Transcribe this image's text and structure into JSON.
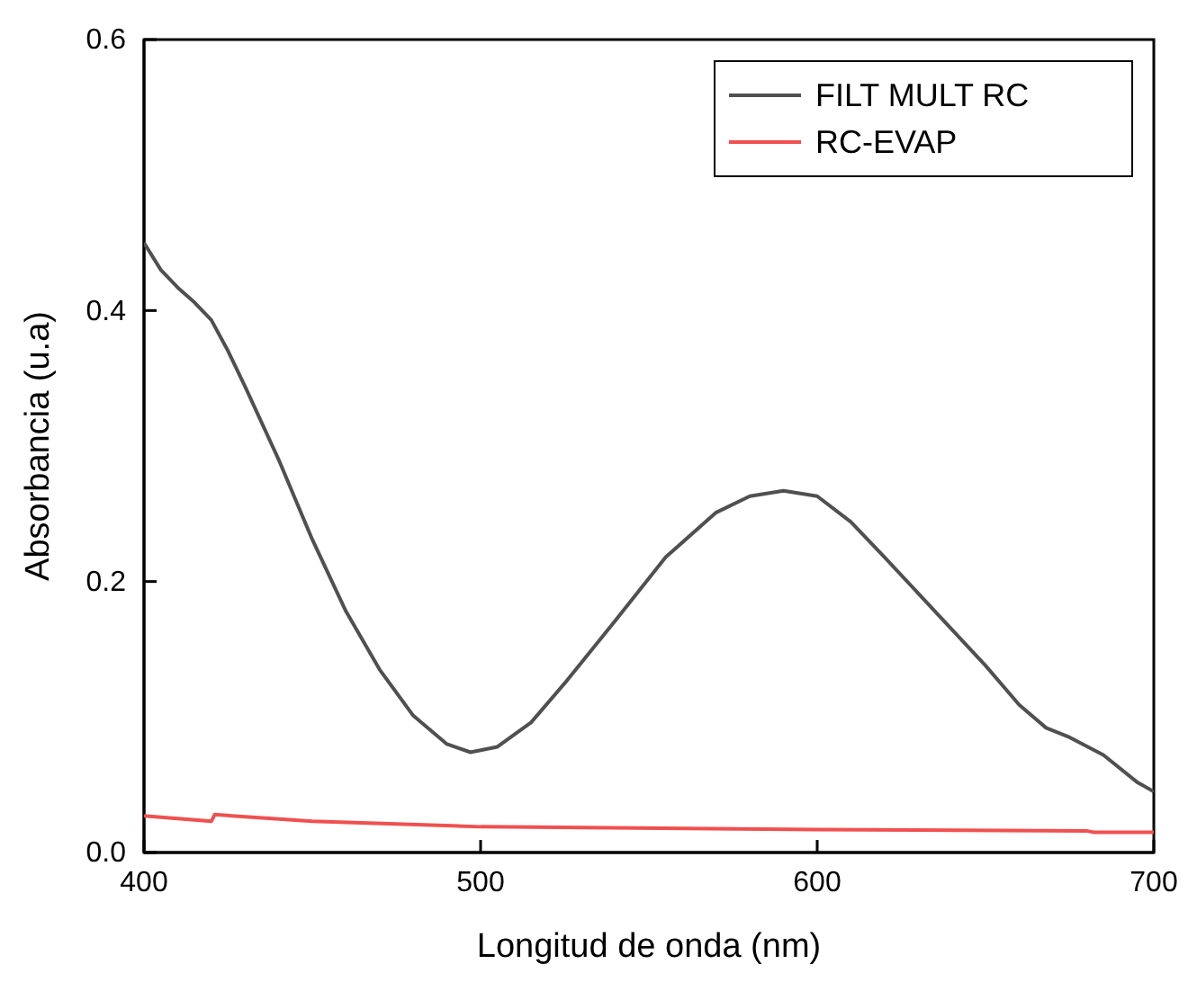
{
  "chart_data": {
    "type": "line",
    "xlabel": "Longitud de onda (nm)",
    "ylabel": "Absorbancia (u.a)",
    "xlim": [
      400,
      700
    ],
    "ylim": [
      0,
      0.6
    ],
    "xticks": [
      400,
      500,
      600,
      700
    ],
    "yticks": [
      {
        "value": 0,
        "label": "0.0"
      },
      {
        "value": 0.2,
        "label": "0.2"
      },
      {
        "value": 0.4,
        "label": "0.4"
      },
      {
        "value": 0.6,
        "label": "0.6"
      }
    ],
    "legend": "top right",
    "grid": false,
    "line_style": "solid",
    "marker": "none",
    "series": [
      {
        "name": "FILT MULT RC",
        "color": "#505050",
        "x": [
          400,
          405,
          410,
          415,
          420,
          425,
          430,
          440,
          450,
          460,
          470,
          480,
          490,
          497,
          505,
          515,
          525,
          540,
          555,
          570,
          580,
          590,
          600,
          610,
          620,
          635,
          650,
          660,
          668,
          675,
          685,
          695,
          700
        ],
        "values": [
          0.45,
          0.43,
          0.417,
          0.406,
          0.393,
          0.37,
          0.344,
          0.29,
          0.231,
          0.178,
          0.135,
          0.101,
          0.08,
          0.074,
          0.078,
          0.096,
          0.125,
          0.171,
          0.218,
          0.251,
          0.263,
          0.267,
          0.263,
          0.244,
          0.218,
          0.178,
          0.138,
          0.109,
          0.092,
          0.085,
          0.072,
          0.052,
          0.045
        ]
      },
      {
        "name": "RC-EVAP",
        "color": "#f05050",
        "x": [
          400,
          420,
          421,
          450,
          500,
          600,
          680,
          682,
          700
        ],
        "values": [
          0.027,
          0.023,
          0.028,
          0.023,
          0.019,
          0.017,
          0.016,
          0.015,
          0.015
        ]
      }
    ]
  }
}
